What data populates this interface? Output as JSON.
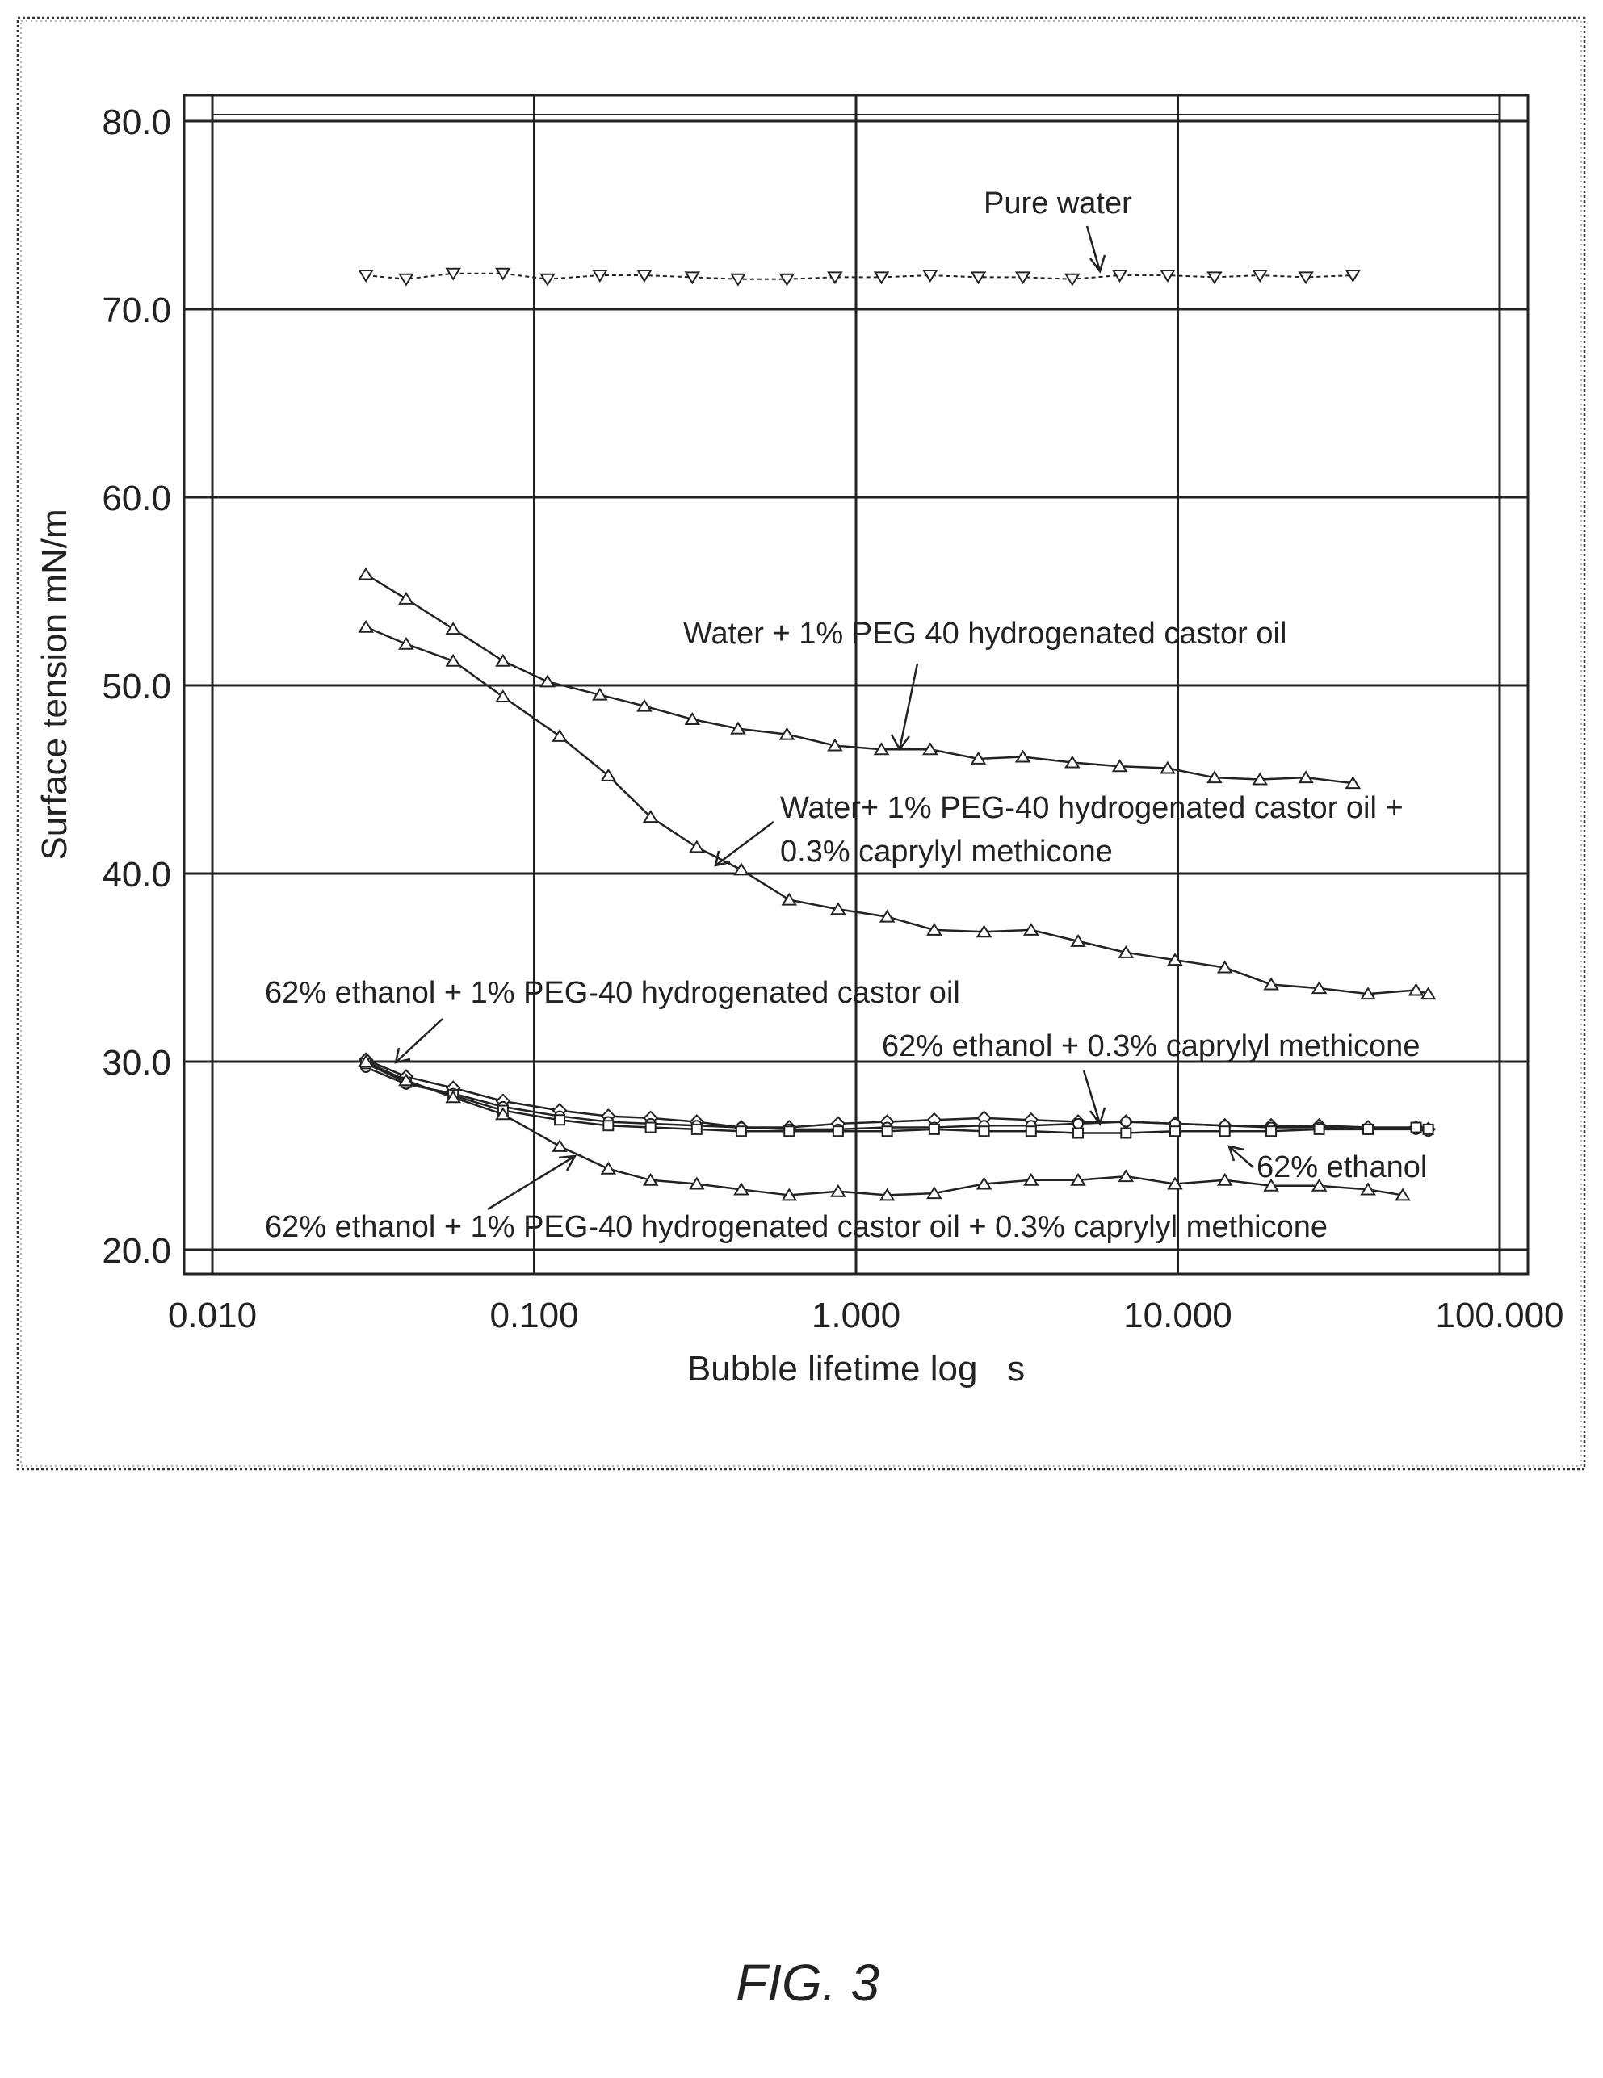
{
  "chart_data": {
    "type": "line",
    "title": "",
    "xlabel": "Bubble lifetime log   s",
    "ylabel": "Surface tension mN/m",
    "x_scale": "log",
    "xlim": [
      0.01,
      100
    ],
    "ylim": [
      20,
      80
    ],
    "x_ticks": [
      "0.010",
      "0.100",
      "1.000",
      "10.000",
      "100.000"
    ],
    "x_tick_values": [
      0.01,
      0.1,
      1,
      10,
      100
    ],
    "y_ticks": [
      "20.0",
      "30.0",
      "40.0",
      "50.0",
      "60.0",
      "70.0",
      "80.0"
    ],
    "y_tick_values": [
      20,
      30,
      40,
      50,
      60,
      70,
      80
    ],
    "grid": true,
    "legend": "none",
    "figure_caption": "FIG. 3",
    "annotations": [
      "Pure water",
      "Water + 1% PEG 40 hydrogenated castor oil",
      "Water+ 1% PEG-40 hydrogenated castor oil +",
      "0.3% caprylyl methicone",
      "62% ethanol + 1% PEG-40 hydrogenated castor oil",
      "62% ethanol + 0.3% caprylyl methicone",
      "62% ethanol",
      "62% ethanol + 1% PEG-40 hydrogenated castor oil + 0.3% caprylyl methicone"
    ],
    "series": [
      {
        "x": [
          0.03,
          0.04,
          0.056,
          0.08,
          0.11,
          0.16,
          0.22,
          0.31,
          0.43,
          0.61,
          0.86,
          1.2,
          1.7,
          2.4,
          3.3,
          4.7,
          6.6,
          9.3,
          13,
          18,
          25,
          35
        ],
        "values": [
          71.8,
          71.6,
          71.9,
          71.9,
          71.6,
          71.8,
          71.8,
          71.7,
          71.6,
          71.6,
          71.7,
          71.7,
          71.8,
          71.7,
          71.7,
          71.6,
          71.8,
          71.8,
          71.7,
          71.8,
          71.7,
          71.8
        ]
      },
      {
        "x": [
          0.03,
          0.04,
          0.056,
          0.08,
          0.11,
          0.16,
          0.22,
          0.31,
          0.43,
          0.61,
          0.86,
          1.2,
          1.7,
          2.4,
          3.3,
          4.7,
          6.6,
          9.3,
          13,
          18,
          25,
          35
        ],
        "values": [
          55.9,
          54.6,
          53.0,
          51.3,
          50.2,
          49.5,
          48.9,
          48.2,
          47.7,
          47.4,
          46.8,
          46.6,
          46.6,
          46.1,
          46.2,
          45.9,
          45.7,
          45.6,
          45.1,
          45.0,
          45.1,
          44.8
        ]
      },
      {
        "x": [
          0.03,
          0.04,
          0.056,
          0.08,
          0.12,
          0.17,
          0.23,
          0.32,
          0.44,
          0.62,
          0.88,
          1.25,
          1.75,
          2.5,
          3.5,
          4.9,
          6.9,
          9.8,
          14,
          19.5,
          27.5,
          39,
          55,
          60
        ],
        "values": [
          53.1,
          52.2,
          51.3,
          49.4,
          47.3,
          45.2,
          43.0,
          41.4,
          40.2,
          38.6,
          38.1,
          37.7,
          37.0,
          36.9,
          37.0,
          36.4,
          35.8,
          35.4,
          35.0,
          34.1,
          33.9,
          33.6,
          33.8,
          33.6
        ]
      },
      {
        "x": [
          0.03,
          0.04,
          0.056,
          0.08,
          0.12,
          0.17,
          0.23,
          0.32,
          0.44,
          0.62,
          0.88,
          1.25,
          1.75,
          2.5,
          3.5,
          4.9,
          6.9,
          9.8,
          14,
          19.5,
          27.5,
          39,
          55,
          60
        ],
        "values": [
          30.1,
          29.2,
          28.6,
          27.9,
          27.4,
          27.1,
          27.0,
          26.8,
          26.5,
          26.5,
          26.7,
          26.8,
          26.9,
          27.0,
          26.9,
          26.8,
          26.8,
          26.7,
          26.6,
          26.6,
          26.6,
          26.5,
          26.5,
          26.4
        ]
      },
      {
        "x": [
          0.03,
          0.04,
          0.056,
          0.08,
          0.12,
          0.17,
          0.23,
          0.32,
          0.44,
          0.62,
          0.88,
          1.25,
          1.75,
          2.5,
          3.5,
          4.9,
          6.9,
          9.8,
          14,
          19.5,
          27.5,
          39,
          55,
          60
        ],
        "values": [
          29.7,
          28.8,
          28.3,
          27.6,
          27.1,
          26.8,
          26.7,
          26.6,
          26.5,
          26.4,
          26.4,
          26.5,
          26.5,
          26.6,
          26.6,
          26.7,
          26.8,
          26.7,
          26.6,
          26.5,
          26.5,
          26.4,
          26.4,
          26.3
        ]
      },
      {
        "x": [
          0.03,
          0.04,
          0.056,
          0.08,
          0.12,
          0.17,
          0.23,
          0.32,
          0.44,
          0.62,
          0.88,
          1.25,
          1.75,
          2.5,
          3.5,
          4.9,
          6.9,
          9.8,
          14,
          19.5,
          27.5,
          39,
          55,
          60
        ],
        "values": [
          29.9,
          28.9,
          28.2,
          27.4,
          26.9,
          26.6,
          26.5,
          26.4,
          26.3,
          26.3,
          26.3,
          26.3,
          26.4,
          26.3,
          26.3,
          26.2,
          26.2,
          26.3,
          26.3,
          26.3,
          26.4,
          26.4,
          26.5,
          26.4
        ]
      },
      {
        "x": [
          0.03,
          0.04,
          0.056,
          0.08,
          0.12,
          0.17,
          0.23,
          0.32,
          0.44,
          0.62,
          0.88,
          1.25,
          1.75,
          2.5,
          3.5,
          4.9,
          6.9,
          9.8,
          14,
          19.5,
          27.5,
          39,
          50
        ],
        "values": [
          30.0,
          29.0,
          28.1,
          27.2,
          25.5,
          24.3,
          23.7,
          23.5,
          23.2,
          22.9,
          23.1,
          22.9,
          23.0,
          23.5,
          23.7,
          23.7,
          23.9,
          23.5,
          23.7,
          23.4,
          23.4,
          23.2,
          22.9
        ]
      }
    ]
  }
}
